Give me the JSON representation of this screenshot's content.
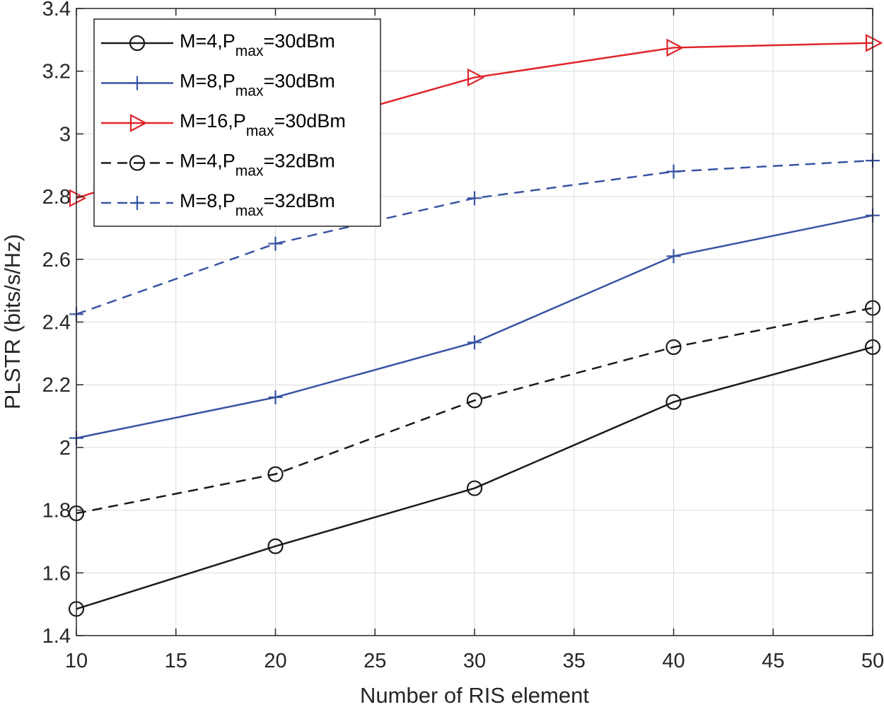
{
  "chart_data": {
    "type": "line",
    "title": "",
    "xlabel": "Number of RIS element",
    "ylabel": "PLSTR (bits/s/Hz)",
    "xlim": [
      10,
      50
    ],
    "ylim": [
      1.4,
      3.4
    ],
    "xticks": [
      10,
      15,
      20,
      25,
      30,
      35,
      40,
      45,
      50
    ],
    "xtick_labels": [
      "10",
      "15",
      "20",
      "25",
      "30",
      "35",
      "40",
      "45",
      "50"
    ],
    "yticks": [
      1.4,
      1.6,
      1.8,
      2.0,
      2.2,
      2.4,
      2.6,
      2.8,
      3.0,
      3.2,
      3.4
    ],
    "ytick_labels": [
      "1.4",
      "1.6",
      "1.8",
      "2",
      "2.2",
      "2.4",
      "2.6",
      "2.8",
      "3",
      "3.2",
      "3.4"
    ],
    "grid": true,
    "legend_position": "top-left",
    "x": [
      10,
      20,
      30,
      40,
      50
    ],
    "series": [
      {
        "legend_prefix": "M=4,P",
        "legend_sub": "max",
        "legend_suffix": "=30dBm",
        "values": [
          1.485,
          1.685,
          1.87,
          2.145,
          2.32
        ],
        "color": "#1a1a1a",
        "dash": "solid",
        "marker": "circle"
      },
      {
        "legend_prefix": "M=8,P",
        "legend_sub": "max",
        "legend_suffix": "=30dBm",
        "values": [
          2.03,
          2.16,
          2.335,
          2.61,
          2.74
        ],
        "color": "#3853a4",
        "dash": "solid",
        "marker": "plus"
      },
      {
        "legend_prefix": "M=16,P",
        "legend_sub": "max",
        "legend_suffix": "=30dBm",
        "values": [
          2.795,
          3.0,
          3.18,
          3.275,
          3.29
        ],
        "color": "#e0252a",
        "dash": "solid",
        "marker": "triangle-right"
      },
      {
        "legend_prefix": "M=4,P",
        "legend_sub": "max",
        "legend_suffix": "=32dBm",
        "values": [
          1.79,
          1.915,
          2.15,
          2.32,
          2.445
        ],
        "color": "#1a1a1a",
        "dash": "dashed",
        "marker": "circle"
      },
      {
        "legend_prefix": "M=8,P",
        "legend_sub": "max",
        "legend_suffix": "=32dBm",
        "values": [
          2.425,
          2.65,
          2.795,
          2.88,
          2.915
        ],
        "color": "#3853a4",
        "dash": "dashed",
        "marker": "plus"
      }
    ]
  }
}
